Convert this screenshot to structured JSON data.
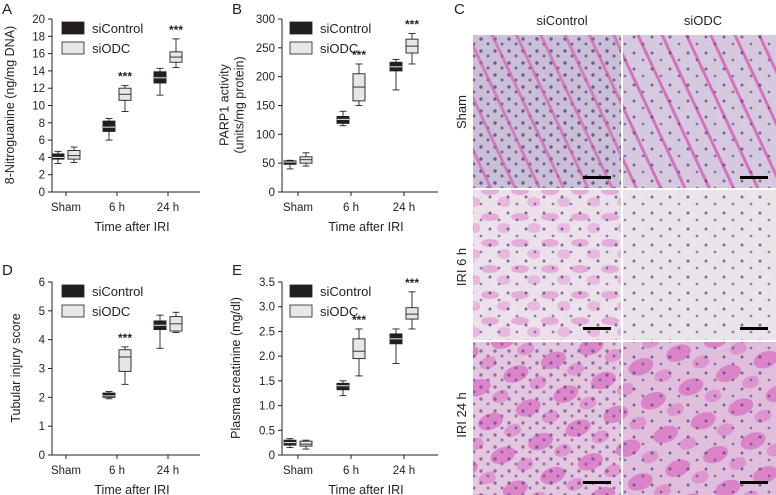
{
  "chart_data": [
    {
      "panel": "A",
      "type": "boxplot",
      "categories": [
        "Sham",
        "6 h",
        "24 h"
      ],
      "xlabel": "Time after IRI",
      "ylabel": "8-Nitroguanine (ng/mg DNA)",
      "ylim": [
        0,
        20
      ],
      "yticks": [
        0,
        2,
        4,
        6,
        8,
        10,
        12,
        14,
        16,
        18,
        20
      ],
      "legend": [
        "siControl",
        "siODC"
      ],
      "series": [
        {
          "name": "siControl",
          "color": "#231f20",
          "boxes": [
            {
              "min": 3.3,
              "q1": 3.8,
              "median": 4.0,
              "q3": 4.4,
              "max": 4.7
            },
            {
              "min": 6.0,
              "q1": 7.0,
              "median": 7.5,
              "q3": 8.2,
              "max": 8.5
            },
            {
              "min": 11.2,
              "q1": 12.6,
              "median": 13.2,
              "q3": 13.9,
              "max": 14.3
            }
          ]
        },
        {
          "name": "siODC",
          "color": "#e6e7e8",
          "boxes": [
            {
              "min": 3.4,
              "q1": 3.8,
              "median": 4.2,
              "q3": 4.8,
              "max": 5.2
            },
            {
              "min": 9.3,
              "q1": 10.6,
              "median": 11.3,
              "q3": 12.0,
              "max": 12.3
            },
            {
              "min": 14.4,
              "q1": 15.0,
              "median": 15.6,
              "q3": 16.2,
              "max": 17.7
            }
          ]
        }
      ],
      "annotations": [
        {
          "category": "6 h",
          "text": "***"
        },
        {
          "category": "24 h",
          "text": "***"
        }
      ]
    },
    {
      "panel": "B",
      "type": "boxplot",
      "categories": [
        "Sham",
        "6 h",
        "24 h"
      ],
      "xlabel": "Time after IRI",
      "ylabel": "PARP1 activity\n(units/mg protein)",
      "ylim": [
        0,
        300
      ],
      "yticks": [
        0,
        50,
        100,
        150,
        200,
        250,
        300
      ],
      "legend": [
        "siControl",
        "siODC"
      ],
      "series": [
        {
          "name": "siControl",
          "color": "#231f20",
          "boxes": [
            {
              "min": 40,
              "q1": 48,
              "median": 52,
              "q3": 54,
              "max": 55
            },
            {
              "min": 115,
              "q1": 119,
              "median": 126,
              "q3": 131,
              "max": 140
            },
            {
              "min": 177,
              "q1": 210,
              "median": 217,
              "q3": 225,
              "max": 230
            }
          ]
        },
        {
          "name": "siODC",
          "color": "#e6e7e8",
          "boxes": [
            {
              "min": 45,
              "q1": 50,
              "median": 56,
              "q3": 61,
              "max": 68
            },
            {
              "min": 150,
              "q1": 158,
              "median": 182,
              "q3": 205,
              "max": 222
            },
            {
              "min": 222,
              "q1": 241,
              "median": 253,
              "q3": 265,
              "max": 275
            }
          ]
        }
      ],
      "annotations": [
        {
          "category": "6 h",
          "text": "***"
        },
        {
          "category": "24 h",
          "text": "***"
        }
      ]
    },
    {
      "panel": "D",
      "type": "boxplot",
      "categories": [
        "Sham",
        "6 h",
        "24 h"
      ],
      "xlabel": "Time after IRI",
      "ylabel": "Tubular injury score",
      "ylim": [
        0,
        6
      ],
      "yticks": [
        0,
        1,
        2,
        3,
        4,
        5,
        6
      ],
      "legend": [
        "siControl",
        "siODC"
      ],
      "series": [
        {
          "name": "siControl",
          "color": "#231f20",
          "boxes": [
            null,
            {
              "min": 1.95,
              "q1": 2.0,
              "median": 2.05,
              "q3": 2.15,
              "max": 2.2
            },
            {
              "min": 3.7,
              "q1": 4.35,
              "median": 4.5,
              "q3": 4.65,
              "max": 4.85
            }
          ]
        },
        {
          "name": "siODC",
          "color": "#e6e7e8",
          "boxes": [
            null,
            {
              "min": 2.45,
              "q1": 2.9,
              "median": 3.4,
              "q3": 3.65,
              "max": 3.75
            },
            {
              "min": 4.25,
              "q1": 4.3,
              "median": 4.55,
              "q3": 4.8,
              "max": 4.95
            }
          ]
        }
      ],
      "annotations": [
        {
          "category": "6 h",
          "text": "***"
        }
      ]
    },
    {
      "panel": "E",
      "type": "boxplot",
      "categories": [
        "Sham",
        "6 h",
        "24 h"
      ],
      "xlabel": "Time after IRI",
      "ylabel": "Plasma creatinine (mg/dl)",
      "ylim": [
        0,
        3.5
      ],
      "yticks": [
        0,
        0.5,
        1.0,
        1.5,
        2.0,
        2.5,
        3.0,
        3.5
      ],
      "ytick_labels": [
        "0",
        "0.5",
        "1.0",
        "1.5",
        "2.0",
        "2.5",
        "3.0",
        "3.5"
      ],
      "legend": [
        "siControl",
        "siODC"
      ],
      "series": [
        {
          "name": "siControl",
          "color": "#231f20",
          "boxes": [
            {
              "min": 0.15,
              "q1": 0.2,
              "median": 0.25,
              "q3": 0.3,
              "max": 0.33
            },
            {
              "min": 1.2,
              "q1": 1.32,
              "median": 1.4,
              "q3": 1.45,
              "max": 1.5
            },
            {
              "min": 1.85,
              "q1": 2.25,
              "median": 2.35,
              "q3": 2.45,
              "max": 2.55
            }
          ]
        },
        {
          "name": "siODC",
          "color": "#e6e7e8",
          "boxes": [
            {
              "min": 0.12,
              "q1": 0.18,
              "median": 0.22,
              "q3": 0.28,
              "max": 0.3
            },
            {
              "min": 1.6,
              "q1": 1.95,
              "median": 2.1,
              "q3": 2.35,
              "max": 2.55
            },
            {
              "min": 2.55,
              "q1": 2.75,
              "median": 2.85,
              "q3": 2.98,
              "max": 3.3
            }
          ]
        }
      ],
      "annotations": [
        {
          "category": "6 h",
          "text": "***"
        },
        {
          "category": "24 h",
          "text": "***"
        }
      ]
    }
  ],
  "histology": {
    "label": "C",
    "columns": [
      "siControl",
      "siODC"
    ],
    "rows": [
      "Sham",
      "IRI 6 h",
      "IRI 24 h"
    ]
  }
}
